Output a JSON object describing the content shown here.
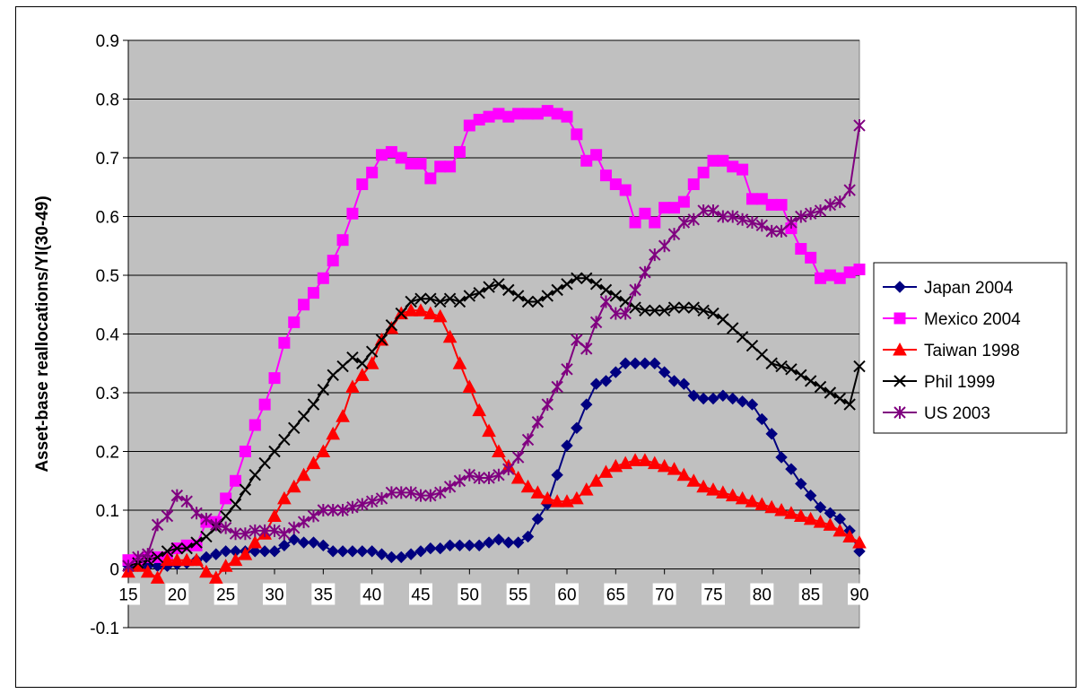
{
  "chart_data": {
    "type": "line",
    "title": "",
    "xlabel": "",
    "ylabel": "Asset-base reallocations/Yl(30-49)",
    "xlim": [
      15,
      90
    ],
    "ylim": [
      -0.1,
      0.9
    ],
    "x_ticks": [
      "15",
      "20",
      "25",
      "30",
      "35",
      "40",
      "45",
      "50",
      "55",
      "60",
      "65",
      "70",
      "75",
      "80",
      "85",
      "90"
    ],
    "y_ticks": [
      "-0.1",
      "0",
      "0.1",
      "0.2",
      "0.3",
      "0.4",
      "0.5",
      "0.6",
      "0.7",
      "0.8",
      "0.9"
    ],
    "grid": "horizontal",
    "legend_position": "right",
    "plot_background": "#c0c0c0",
    "series": [
      {
        "name": "Japan 2004",
        "color": "#000080",
        "marker": "diamond",
        "values": [
          0.005,
          0.005,
          0.005,
          0.005,
          0.005,
          0.008,
          0.01,
          0.015,
          0.02,
          0.025,
          0.03,
          0.03,
          0.03,
          0.03,
          0.03,
          0.03,
          0.04,
          0.05,
          0.045,
          0.045,
          0.04,
          0.03,
          0.03,
          0.03,
          0.03,
          0.03,
          0.025,
          0.02,
          0.02,
          0.025,
          0.03,
          0.035,
          0.035,
          0.04,
          0.04,
          0.04,
          0.04,
          0.045,
          0.05,
          0.045,
          0.045,
          0.055,
          0.085,
          0.11,
          0.16,
          0.21,
          0.24,
          0.28,
          0.315,
          0.32,
          0.335,
          0.35,
          0.35,
          0.35,
          0.35,
          0.335,
          0.32,
          0.315,
          0.295,
          0.29,
          0.29,
          0.295,
          0.29,
          0.285,
          0.28,
          0.255,
          0.23,
          0.19,
          0.17,
          0.145,
          0.125,
          0.105,
          0.095,
          0.085,
          0.065,
          0.03
        ]
      },
      {
        "name": "Mexico 2004",
        "color": "#ff00ff",
        "marker": "square",
        "values": [
          0.015,
          0.015,
          0.02,
          0.02,
          0.02,
          0.035,
          0.04,
          0.04,
          0.08,
          0.08,
          0.12,
          0.15,
          0.2,
          0.245,
          0.28,
          0.325,
          0.385,
          0.42,
          0.45,
          0.47,
          0.495,
          0.525,
          0.56,
          0.605,
          0.655,
          0.675,
          0.705,
          0.71,
          0.7,
          0.69,
          0.69,
          0.665,
          0.685,
          0.685,
          0.71,
          0.755,
          0.765,
          0.77,
          0.775,
          0.77,
          0.775,
          0.775,
          0.775,
          0.78,
          0.775,
          0.77,
          0.74,
          0.695,
          0.705,
          0.67,
          0.655,
          0.645,
          0.59,
          0.605,
          0.59,
          0.615,
          0.615,
          0.625,
          0.655,
          0.675,
          0.695,
          0.695,
          0.685,
          0.68,
          0.63,
          0.63,
          0.62,
          0.62,
          0.58,
          0.545,
          0.53,
          0.495,
          0.5,
          0.495,
          0.505,
          0.51
        ]
      },
      {
        "name": "Taiwan 1998",
        "color": "#ff0000",
        "marker": "triangle",
        "values": [
          -0.005,
          0.005,
          -0.005,
          -0.015,
          0.015,
          0.015,
          0.015,
          0.015,
          -0.005,
          -0.015,
          0.005,
          0.015,
          0.025,
          0.045,
          0.06,
          0.09,
          0.12,
          0.14,
          0.16,
          0.18,
          0.2,
          0.23,
          0.26,
          0.31,
          0.33,
          0.35,
          0.39,
          0.41,
          0.435,
          0.44,
          0.44,
          0.435,
          0.43,
          0.395,
          0.35,
          0.31,
          0.27,
          0.235,
          0.2,
          0.175,
          0.155,
          0.14,
          0.13,
          0.12,
          0.115,
          0.115,
          0.12,
          0.135,
          0.15,
          0.165,
          0.175,
          0.18,
          0.185,
          0.185,
          0.18,
          0.175,
          0.17,
          0.16,
          0.15,
          0.14,
          0.135,
          0.13,
          0.125,
          0.12,
          0.115,
          0.11,
          0.105,
          0.1,
          0.095,
          0.09,
          0.085,
          0.08,
          0.075,
          0.065,
          0.055,
          0.045
        ]
      },
      {
        "name": "Phil 1999",
        "color": "#000000",
        "marker": "x",
        "values": [
          0.005,
          0.01,
          0.015,
          0.02,
          0.03,
          0.035,
          0.035,
          0.045,
          0.055,
          0.07,
          0.09,
          0.11,
          0.135,
          0.16,
          0.18,
          0.2,
          0.22,
          0.24,
          0.26,
          0.28,
          0.305,
          0.33,
          0.345,
          0.36,
          0.35,
          0.37,
          0.39,
          0.415,
          0.435,
          0.455,
          0.46,
          0.46,
          0.455,
          0.46,
          0.455,
          0.465,
          0.47,
          0.48,
          0.485,
          0.475,
          0.465,
          0.455,
          0.455,
          0.465,
          0.475,
          0.485,
          0.495,
          0.495,
          0.485,
          0.475,
          0.465,
          0.455,
          0.445,
          0.44,
          0.44,
          0.44,
          0.445,
          0.445,
          0.445,
          0.44,
          0.435,
          0.425,
          0.41,
          0.395,
          0.38,
          0.365,
          0.35,
          0.345,
          0.34,
          0.33,
          0.32,
          0.31,
          0.3,
          0.29,
          0.28,
          0.345
        ]
      },
      {
        "name": "US 2003",
        "color": "#800080",
        "marker": "star",
        "values": [
          0.005,
          0.02,
          0.025,
          0.075,
          0.09,
          0.125,
          0.115,
          0.095,
          0.085,
          0.075,
          0.07,
          0.06,
          0.06,
          0.065,
          0.065,
          0.065,
          0.06,
          0.07,
          0.08,
          0.09,
          0.1,
          0.1,
          0.1,
          0.105,
          0.11,
          0.115,
          0.12,
          0.13,
          0.13,
          0.13,
          0.125,
          0.125,
          0.13,
          0.14,
          0.15,
          0.16,
          0.155,
          0.155,
          0.16,
          0.17,
          0.19,
          0.22,
          0.25,
          0.28,
          0.31,
          0.34,
          0.39,
          0.375,
          0.42,
          0.455,
          0.435,
          0.435,
          0.475,
          0.505,
          0.535,
          0.55,
          0.57,
          0.59,
          0.595,
          0.61,
          0.61,
          0.6,
          0.6,
          0.595,
          0.59,
          0.585,
          0.575,
          0.575,
          0.59,
          0.6,
          0.605,
          0.61,
          0.62,
          0.625,
          0.645,
          0.755
        ]
      }
    ]
  }
}
